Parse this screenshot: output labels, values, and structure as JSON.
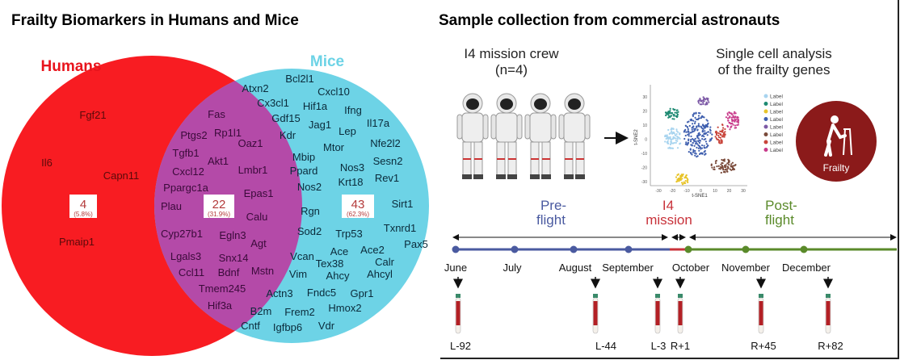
{
  "left": {
    "title": "Frailty Biomarkers in Humans and Mice",
    "humans_label": "Humans",
    "mice_label": "Mice",
    "colors": {
      "humans": "#f81c22",
      "mice": "#6dd3e6",
      "overlap": "#b44aa8",
      "humans_text": "#e8141c",
      "mice_text": "#6dd3e6",
      "count_text": "#b33a3a"
    },
    "counts": {
      "humans_only": {
        "count": "4",
        "percent": "(5.8%)"
      },
      "overlap": {
        "count": "22",
        "percent": "(31.9%)"
      },
      "mice_only": {
        "count": "43",
        "percent": "(62.3%)"
      }
    },
    "genes_humans_only": [
      "Fgf21",
      "Il6",
      "Capn11",
      "Pmaip1"
    ],
    "genes_overlap": [
      "Fas",
      "Ptgs2",
      "Rp1l1",
      "Oaz1",
      "Tgfb1",
      "Akt1",
      "Cxcl12",
      "Lmbr1",
      "Ppargc1a",
      "Epas1",
      "Plau",
      "Calu",
      "Cyp27b1",
      "Egln3",
      "Agt",
      "Lgals3",
      "Snx14",
      "Ccl11",
      "Bdnf",
      "Mstn",
      "Tmem245",
      "Hif3a"
    ],
    "genes_mice_only": [
      "Atxn2",
      "Bcl2l1",
      "Cxcl10",
      "Cx3cl1",
      "Hif1a",
      "Ifng",
      "Gdf15",
      "Jag1",
      "Lep",
      "Il17a",
      "Kdr",
      "Mtor",
      "Nfe2l2",
      "Mbip",
      "Ppard",
      "Nos3",
      "Sesn2",
      "Krt18",
      "Rev1",
      "Nos2",
      "Sirt1",
      "Rgn",
      "Txnrd1",
      "Sod2",
      "Trp53",
      "Pax5",
      "Vcan",
      "Ace",
      "Ace2",
      "Tex38",
      "Calr",
      "Vim",
      "Ahcy",
      "Ahcyl",
      "Actn3",
      "Fndc5",
      "Gpr1",
      "B2m",
      "Frem2",
      "Hmox2",
      "Cntf",
      "Igfbp6",
      "Vdr"
    ]
  },
  "right": {
    "title": "Sample collection from commercial astronauts",
    "crew_line1": "I4 mission crew",
    "crew_line2": "(n=4)",
    "analysis_line1": "Single cell analysis",
    "analysis_line2": "of the frailty genes",
    "tsne": {
      "xlabel": "t-SNE1",
      "ylabel": "t-SNE2",
      "xticks": [
        "-30",
        "-20",
        "-10",
        "0",
        "10",
        "20",
        "30"
      ],
      "yticks": [
        "30",
        "20",
        "10",
        "0",
        "-10",
        "-20",
        "-30"
      ],
      "legend": [
        "Label",
        "Label",
        "Label",
        "Label",
        "Label",
        "Label",
        "Label",
        "Label"
      ],
      "legend_colors": [
        "#a8d4ef",
        "#1e8a72",
        "#e8c42a",
        "#3f5fae",
        "#7d5aa6",
        "#7a4a3a",
        "#c8443a",
        "#c83a8a"
      ]
    },
    "frailty_icon": {
      "label": "Frailty",
      "color": "#8b1a1a"
    },
    "phases": {
      "pre": {
        "line1": "Pre-",
        "line2": "flight",
        "color": "#4a5aa0"
      },
      "mission": {
        "line1": "I4",
        "line2": "mission",
        "color": "#c8323a"
      },
      "post": {
        "line1": "Post-",
        "line2": "flight",
        "color": "#5a8a2a"
      }
    },
    "months": [
      "June",
      "July",
      "August",
      "September",
      "October",
      "November",
      "December"
    ],
    "timepoints": [
      "L-92",
      "L-44",
      "L-3",
      "R+1",
      "R+45",
      "R+82"
    ]
  }
}
